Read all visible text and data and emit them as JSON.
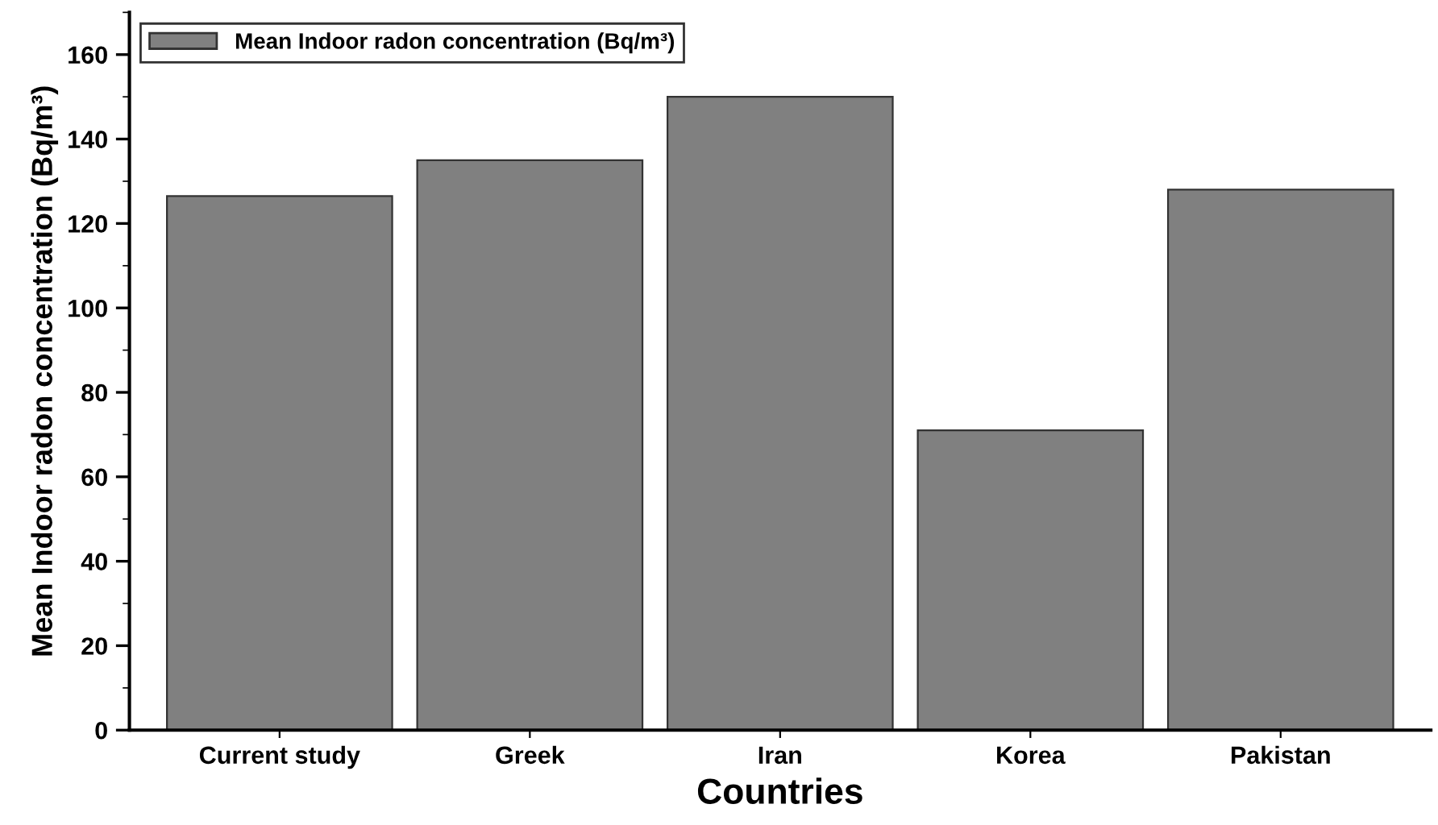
{
  "chart_data": {
    "type": "bar",
    "categories": [
      "Current study",
      "Greek",
      "Iran",
      "Korea",
      "Pakistan"
    ],
    "series": [
      {
        "name": "Mean Indoor radon concentration (Bq/m³)",
        "color": "#808080",
        "values": [
          126.5,
          135,
          150,
          71,
          128
        ]
      }
    ],
    "xlabel": "Countries",
    "ylabel": "Mean Indoor radon concentration (Bq/m³)",
    "ylim": [
      0,
      170
    ],
    "yticks": [
      0,
      20,
      40,
      60,
      80,
      100,
      120,
      140,
      160
    ],
    "legend": "top left",
    "grid": false
  }
}
